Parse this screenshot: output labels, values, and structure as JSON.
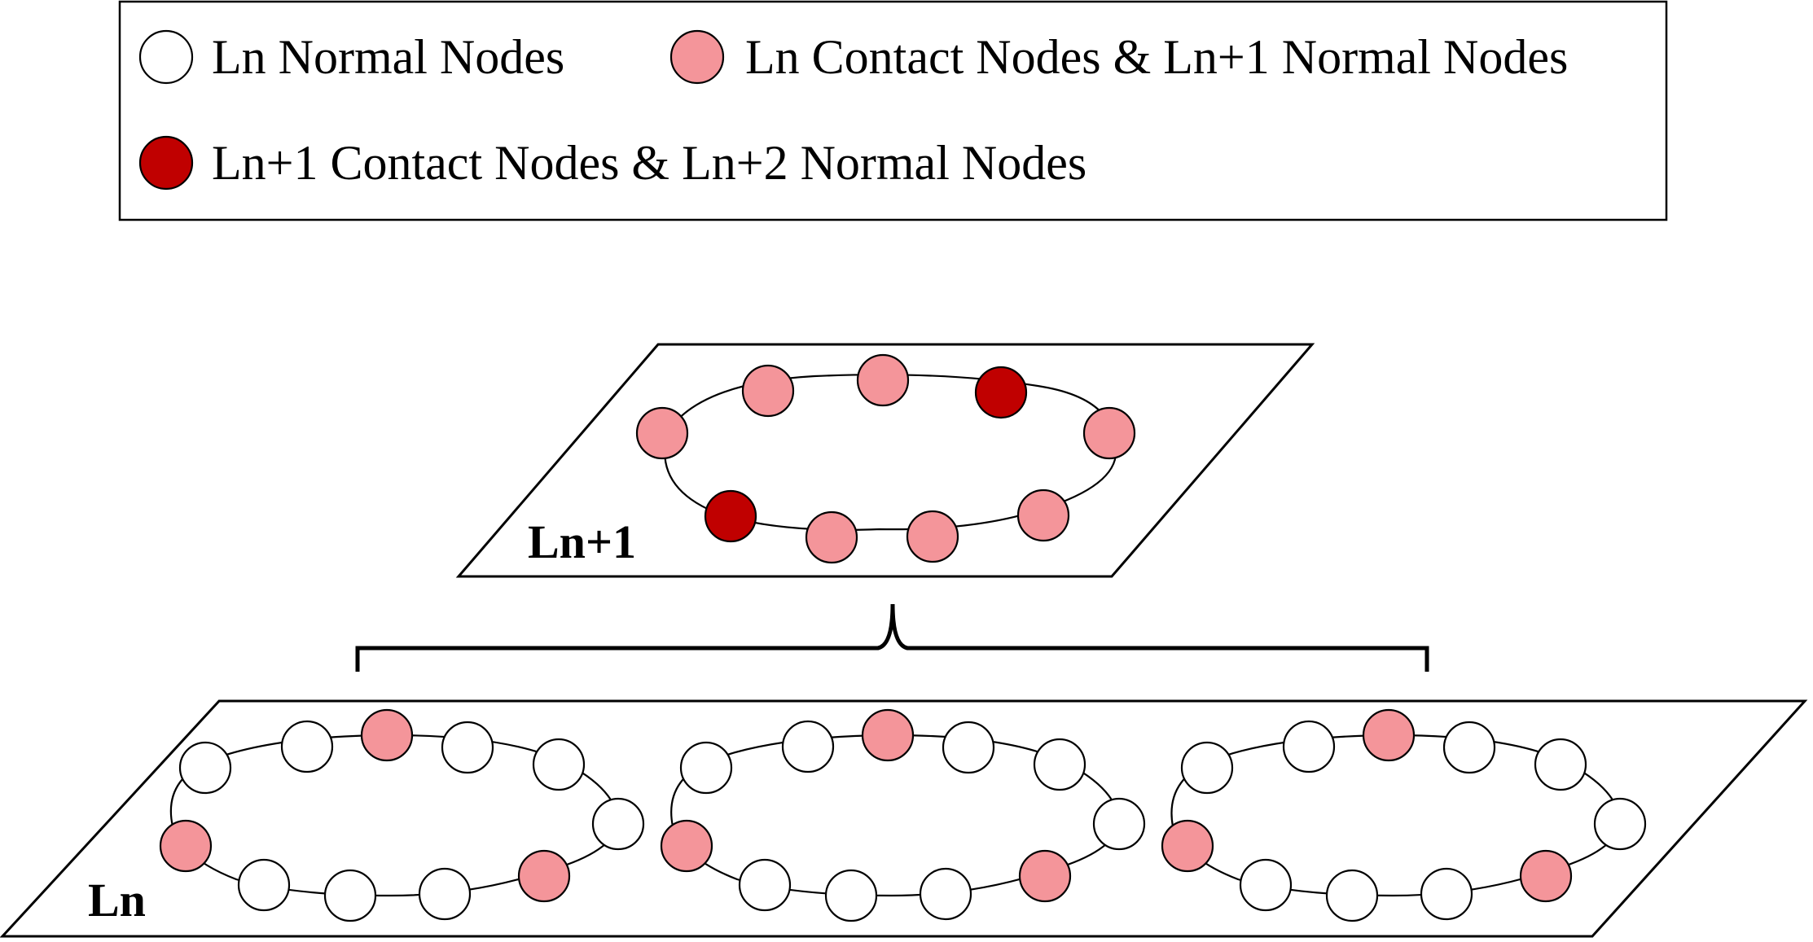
{
  "legend": {
    "items": [
      {
        "label": "Ln Normal Nodes",
        "type": "normal"
      },
      {
        "label": "Ln Contact Nodes & Ln+1 Normal Nodes",
        "type": "contact"
      },
      {
        "label": "Ln+1 Contact Nodes & Ln+2 Normal Nodes",
        "type": "upper_contact"
      }
    ]
  },
  "colors": {
    "normal": "#ffffff",
    "contact": "#f4959a",
    "upper_contact": "#c00000"
  },
  "planes": {
    "upper": {
      "label": "Ln+1",
      "rings": [
        {
          "nodes": [
            "contact",
            "contact",
            "contact",
            "upper_contact",
            "contact",
            "contact",
            "contact",
            "contact",
            "upper_contact",
            "contact"
          ]
        }
      ]
    },
    "lower": {
      "label": "Ln",
      "rings": [
        {
          "nodes": [
            "normal",
            "normal",
            "contact",
            "normal",
            "normal",
            "normal",
            "contact",
            "normal",
            "normal",
            "normal",
            "contact"
          ]
        },
        {
          "nodes": [
            "normal",
            "normal",
            "contact",
            "normal",
            "normal",
            "normal",
            "contact",
            "normal",
            "normal",
            "normal",
            "contact"
          ]
        },
        {
          "nodes": [
            "normal",
            "normal",
            "contact",
            "normal",
            "normal",
            "normal",
            "contact",
            "normal",
            "normal",
            "normal",
            "contact"
          ]
        }
      ]
    }
  }
}
